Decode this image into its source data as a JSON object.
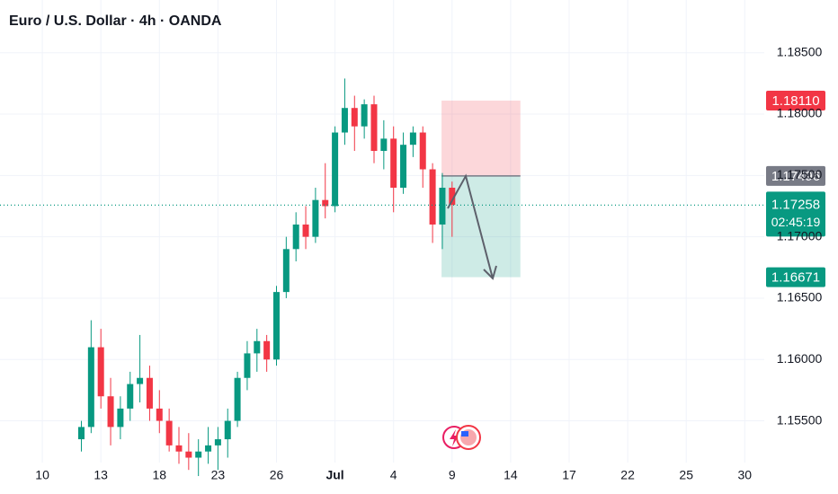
{
  "chart_data": {
    "type": "candlestick",
    "title": "Euro / U.S. Dollar · 4h · OANDA",
    "up_color": "#089981",
    "down_color": "#f23645",
    "xlim": [
      -2.17,
      37
    ],
    "ylim": [
      1.1516,
      1.1893
    ],
    "xticks": [
      {
        "value": 0,
        "label": "10"
      },
      {
        "value": 3,
        "label": "13"
      },
      {
        "value": 6,
        "label": "18"
      },
      {
        "value": 9,
        "label": "23"
      },
      {
        "value": 12,
        "label": "26"
      },
      {
        "value": 15,
        "label": "Jul"
      },
      {
        "value": 18,
        "label": "4"
      },
      {
        "value": 21,
        "label": "9"
      },
      {
        "value": 24,
        "label": "14"
      },
      {
        "value": 27,
        "label": "17"
      },
      {
        "value": 30,
        "label": "22"
      },
      {
        "value": 33,
        "label": "25"
      },
      {
        "value": 36,
        "label": "30"
      }
    ],
    "yticks": [
      {
        "value": 1.155,
        "label": "1.15500"
      },
      {
        "value": 1.16,
        "label": "1.16000"
      },
      {
        "value": 1.165,
        "label": "1.16500"
      },
      {
        "value": 1.17,
        "label": "1.17000"
      },
      {
        "value": 1.175,
        "label": "1.17500"
      },
      {
        "value": 1.18,
        "label": "1.18000"
      },
      {
        "value": 1.185,
        "label": "1.18500"
      }
    ],
    "grid": true,
    "candles": [
      {
        "x": 2.0,
        "open": 1.1535,
        "high": 1.155,
        "low": 1.1525,
        "close": 1.1545
      },
      {
        "x": 2.5,
        "open": 1.1545,
        "high": 1.1632,
        "low": 1.154,
        "close": 1.161
      },
      {
        "x": 3.0,
        "open": 1.161,
        "high": 1.1625,
        "low": 1.156,
        "close": 1.157
      },
      {
        "x": 3.5,
        "open": 1.157,
        "high": 1.1585,
        "low": 1.153,
        "close": 1.1545
      },
      {
        "x": 4.0,
        "open": 1.1545,
        "high": 1.157,
        "low": 1.1535,
        "close": 1.156
      },
      {
        "x": 4.5,
        "open": 1.156,
        "high": 1.159,
        "low": 1.155,
        "close": 1.158
      },
      {
        "x": 5.0,
        "open": 1.158,
        "high": 1.162,
        "low": 1.1565,
        "close": 1.1585
      },
      {
        "x": 5.5,
        "open": 1.1585,
        "high": 1.1595,
        "low": 1.155,
        "close": 1.156
      },
      {
        "x": 6.0,
        "open": 1.156,
        "high": 1.1575,
        "low": 1.154,
        "close": 1.155
      },
      {
        "x": 6.5,
        "open": 1.155,
        "high": 1.156,
        "low": 1.1525,
        "close": 1.153
      },
      {
        "x": 7.0,
        "open": 1.153,
        "high": 1.1545,
        "low": 1.1515,
        "close": 1.1525
      },
      {
        "x": 7.5,
        "open": 1.1525,
        "high": 1.154,
        "low": 1.151,
        "close": 1.152
      },
      {
        "x": 8.0,
        "open": 1.152,
        "high": 1.1535,
        "low": 1.1505,
        "close": 1.1525
      },
      {
        "x": 8.5,
        "open": 1.1525,
        "high": 1.1545,
        "low": 1.1515,
        "close": 1.153
      },
      {
        "x": 9.0,
        "open": 1.153,
        "high": 1.1545,
        "low": 1.151,
        "close": 1.1535
      },
      {
        "x": 9.5,
        "open": 1.1535,
        "high": 1.156,
        "low": 1.152,
        "close": 1.155
      },
      {
        "x": 10.0,
        "open": 1.155,
        "high": 1.159,
        "low": 1.1545,
        "close": 1.1585
      },
      {
        "x": 10.5,
        "open": 1.1585,
        "high": 1.1615,
        "low": 1.1575,
        "close": 1.1605
      },
      {
        "x": 11.0,
        "open": 1.1605,
        "high": 1.1625,
        "low": 1.159,
        "close": 1.1615
      },
      {
        "x": 11.5,
        "open": 1.1615,
        "high": 1.162,
        "low": 1.159,
        "close": 1.16
      },
      {
        "x": 12.0,
        "open": 1.16,
        "high": 1.166,
        "low": 1.1595,
        "close": 1.1655
      },
      {
        "x": 12.5,
        "open": 1.1655,
        "high": 1.17,
        "low": 1.165,
        "close": 1.169
      },
      {
        "x": 13.0,
        "open": 1.169,
        "high": 1.172,
        "low": 1.168,
        "close": 1.171
      },
      {
        "x": 13.5,
        "open": 1.171,
        "high": 1.1725,
        "low": 1.169,
        "close": 1.17
      },
      {
        "x": 14.0,
        "open": 1.17,
        "high": 1.174,
        "low": 1.1695,
        "close": 1.173
      },
      {
        "x": 14.5,
        "open": 1.173,
        "high": 1.176,
        "low": 1.1715,
        "close": 1.1725
      },
      {
        "x": 15.0,
        "open": 1.1725,
        "high": 1.179,
        "low": 1.172,
        "close": 1.1785
      },
      {
        "x": 15.5,
        "open": 1.1785,
        "high": 1.1829,
        "low": 1.1775,
        "close": 1.1805
      },
      {
        "x": 16.0,
        "open": 1.1805,
        "high": 1.1815,
        "low": 1.177,
        "close": 1.179
      },
      {
        "x": 16.5,
        "open": 1.179,
        "high": 1.1812,
        "low": 1.178,
        "close": 1.1808
      },
      {
        "x": 17.0,
        "open": 1.1808,
        "high": 1.1815,
        "low": 1.176,
        "close": 1.177
      },
      {
        "x": 17.5,
        "open": 1.177,
        "high": 1.1795,
        "low": 1.1755,
        "close": 1.178
      },
      {
        "x": 18.0,
        "open": 1.178,
        "high": 1.179,
        "low": 1.172,
        "close": 1.174
      },
      {
        "x": 18.5,
        "open": 1.174,
        "high": 1.1785,
        "low": 1.1735,
        "close": 1.1775
      },
      {
        "x": 19.0,
        "open": 1.1775,
        "high": 1.179,
        "low": 1.1765,
        "close": 1.1785
      },
      {
        "x": 19.5,
        "open": 1.1785,
        "high": 1.179,
        "low": 1.174,
        "close": 1.1755
      },
      {
        "x": 20.0,
        "open": 1.1755,
        "high": 1.176,
        "low": 1.1695,
        "close": 1.171
      },
      {
        "x": 20.5,
        "open": 1.171,
        "high": 1.1752,
        "low": 1.169,
        "close": 1.174
      },
      {
        "x": 21.0,
        "open": 1.174,
        "high": 1.1745,
        "low": 1.17,
        "close": 1.1726
      }
    ],
    "position": {
      "x_start": 20.46,
      "x_end": 24.5,
      "stop": {
        "value": 1.1811,
        "label": "1.18110"
      },
      "entry": {
        "value": 1.17496,
        "label": "1.17496"
      },
      "target": {
        "value": 1.16671,
        "label": "1.16671"
      }
    },
    "current_price": {
      "value": 1.17258,
      "label": "1.17258",
      "countdown": "02:45:19"
    }
  }
}
